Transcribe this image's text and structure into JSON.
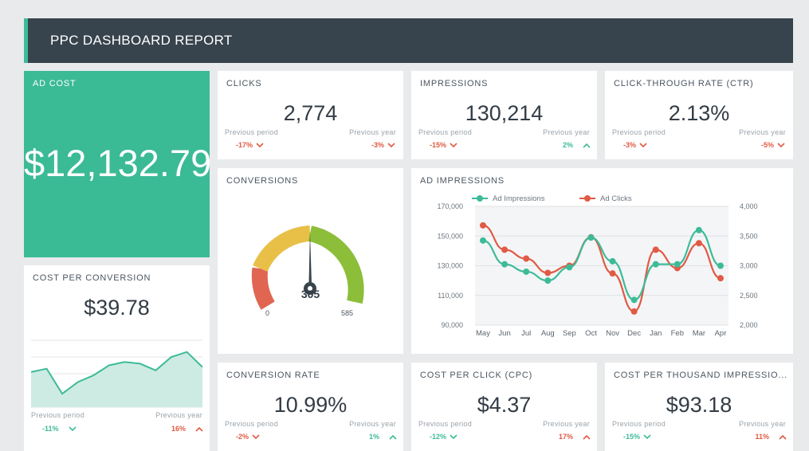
{
  "header": {
    "title": "PPC DASHBOARD REPORT"
  },
  "colors": {
    "accent": "#3dbb99",
    "negative": "#e05a45",
    "header_bg": "#38444d"
  },
  "ad_cost": {
    "title": "AD COST",
    "value": "$12,132.79"
  },
  "kpis": {
    "clicks": {
      "title": "CLICKS",
      "value": "2,774",
      "prev_period_label": "Previous period",
      "prev_period": "-17%",
      "prev_year_label": "Previous year",
      "prev_year": "-3%"
    },
    "impressions": {
      "title": "IMPRESSIONS",
      "value": "130,214",
      "prev_period_label": "Previous period",
      "prev_period": "-15%",
      "prev_year_label": "Previous year",
      "prev_year": "2%"
    },
    "ctr": {
      "title": "CLICK-THROUGH RATE (CTR)",
      "value": "2.13%",
      "prev_period_label": "Previous period",
      "prev_period": "-3%",
      "prev_year_label": "Previous year",
      "prev_year": "-5%"
    },
    "conversion_rate": {
      "title": "CONVERSION RATE",
      "value": "10.99%",
      "prev_period_label": "Previous period",
      "prev_period": "-2%",
      "prev_year_label": "Previous year",
      "prev_year": "1%"
    },
    "cpc": {
      "title": "COST PER CLICK (CPC)",
      "value": "$4.37",
      "prev_period_label": "Previous period",
      "prev_period": "-12%",
      "prev_year_label": "Previous year",
      "prev_year": "17%"
    },
    "cpm": {
      "title": "COST PER THOUSAND IMPRESSIO...",
      "value": "$93.18",
      "prev_period_label": "Previous period",
      "prev_period": "-15%",
      "prev_year_label": "Previous year",
      "prev_year": "11%"
    }
  },
  "cost_per_conversion": {
    "title": "COST PER CONVERSION",
    "value": "$39.78",
    "prev_period_label": "Previous period",
    "prev_period": "-11%",
    "prev_year_label": "Previous year",
    "prev_year": "16%"
  },
  "conversions": {
    "title": "CONVERSIONS",
    "value": "305",
    "min_label": "0",
    "max_label": "585",
    "min": 0,
    "max": 585
  },
  "ad_impressions": {
    "title": "AD IMPRESSIONS"
  },
  "chart_data": [
    {
      "type": "line",
      "title": "AD IMPRESSIONS",
      "x": [
        "May",
        "Jun",
        "Jul",
        "Aug",
        "Sep",
        "Oct",
        "Nov",
        "Dec",
        "Jan",
        "Feb",
        "Mar",
        "Apr"
      ],
      "series": [
        {
          "name": "Ad Impressions",
          "axis": "left",
          "color": "#3dbb99",
          "values": [
            147000,
            131000,
            126000,
            120000,
            129000,
            149000,
            133000,
            107000,
            131000,
            131000,
            154000,
            130000
          ]
        },
        {
          "name": "Ad Clicks",
          "axis": "right",
          "color": "#e05a45",
          "values": [
            3680,
            3270,
            3120,
            2880,
            3000,
            3480,
            2870,
            2230,
            3270,
            2960,
            3380,
            2790
          ]
        }
      ],
      "ylim_left": [
        90000,
        170000
      ],
      "yticks_left": [
        "170,000",
        "150,000",
        "130,000",
        "110,000",
        "90,000"
      ],
      "ylim_right": [
        2000,
        4000
      ],
      "yticks_right": [
        "4,000",
        "3,500",
        "3,000",
        "2,500",
        "2,000"
      ],
      "legend": "top-left",
      "grid": true
    },
    {
      "type": "area",
      "title": "COST PER CONVERSION",
      "values": [
        41,
        43,
        28,
        35,
        39,
        45,
        47,
        46,
        42,
        50,
        53,
        44
      ],
      "ylim": [
        20,
        60
      ],
      "color": "#3dbb99",
      "grid": true
    }
  ]
}
